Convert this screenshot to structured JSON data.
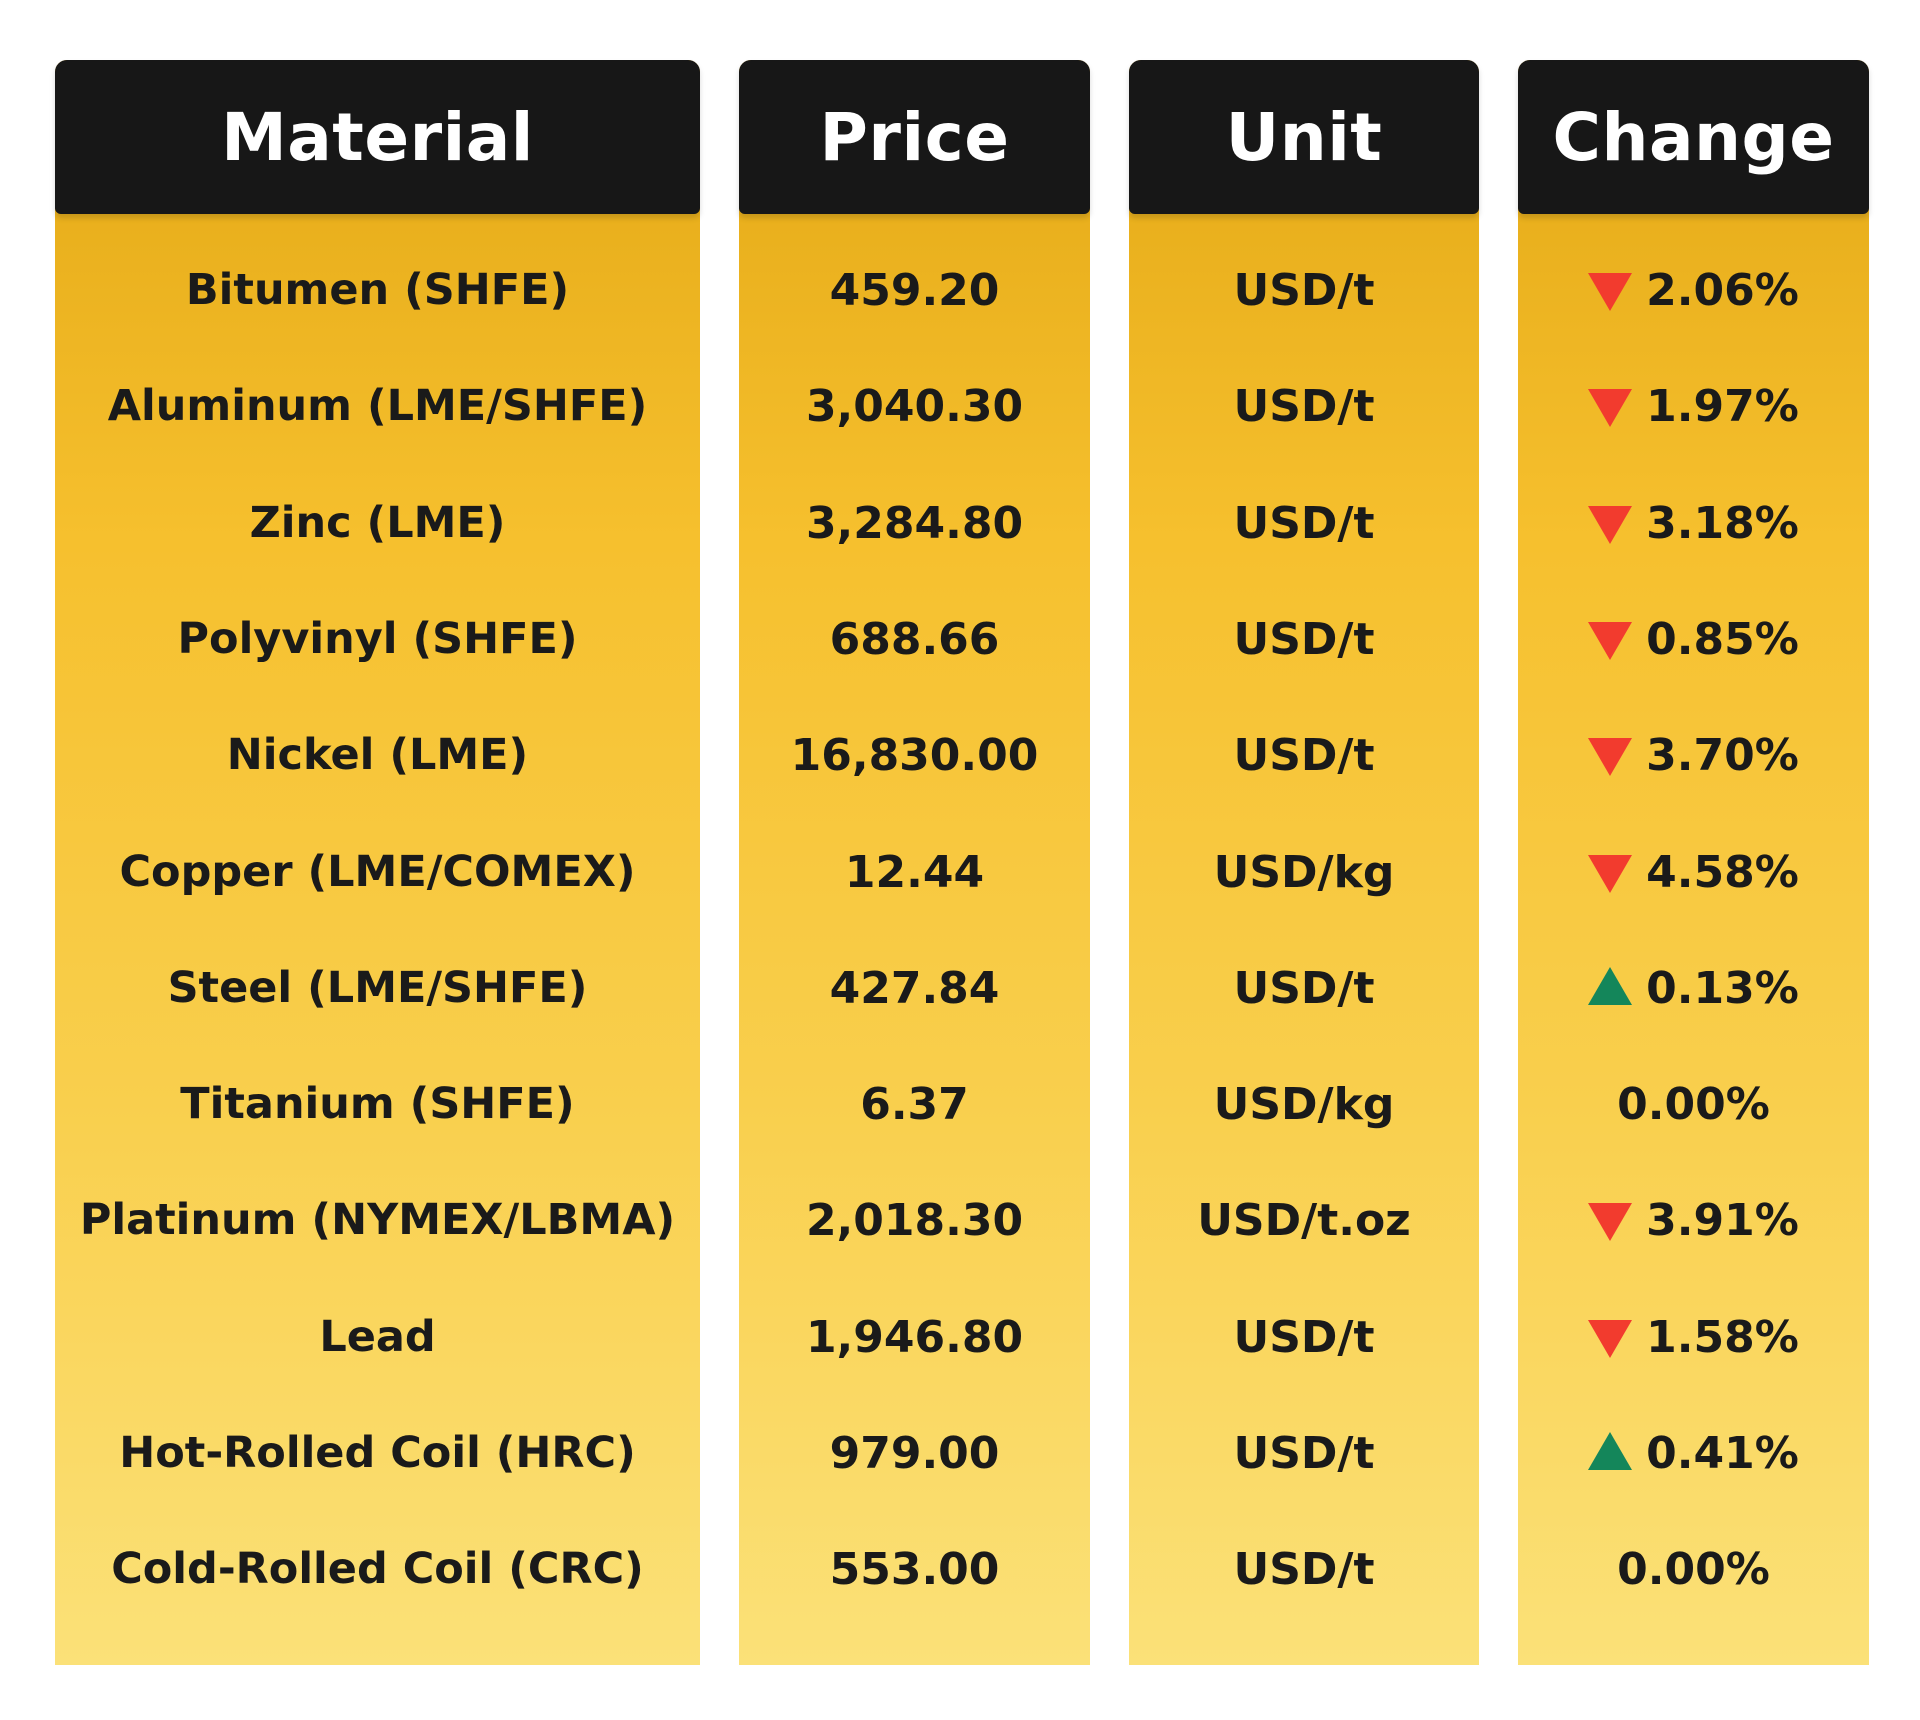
{
  "headers": {
    "material": "Material",
    "price": "Price",
    "unit": "Unit",
    "change": "Change"
  },
  "colors": {
    "header_bg": "#171717",
    "down": "#f23b2e",
    "up": "#14865a",
    "gradient_top": "#e3a815",
    "gradient_bottom": "#fbe178"
  },
  "rows": [
    {
      "material": "Bitumen (SHFE)",
      "price": "459.20",
      "unit": "USD/t",
      "direction": "down",
      "change": "2.06%"
    },
    {
      "material": "Aluminum (LME/SHFE)",
      "price": "3,040.30",
      "unit": "USD/t",
      "direction": "down",
      "change": "1.97%"
    },
    {
      "material": "Zinc (LME)",
      "price": "3,284.80",
      "unit": "USD/t",
      "direction": "down",
      "change": "3.18%"
    },
    {
      "material": "Polyvinyl (SHFE)",
      "price": "688.66",
      "unit": "USD/t",
      "direction": "down",
      "change": "0.85%"
    },
    {
      "material": "Nickel (LME)",
      "price": "16,830.00",
      "unit": "USD/t",
      "direction": "down",
      "change": "3.70%"
    },
    {
      "material": "Copper (LME/COMEX)",
      "price": "12.44",
      "unit": "USD/kg",
      "direction": "down",
      "change": "4.58%"
    },
    {
      "material": "Steel (LME/SHFE)",
      "price": "427.84",
      "unit": "USD/t",
      "direction": "up",
      "change": "0.13%"
    },
    {
      "material": "Titanium (SHFE)",
      "price": "6.37",
      "unit": "USD/kg",
      "direction": "none",
      "change": "0.00%"
    },
    {
      "material": "Platinum (NYMEX/LBMA)",
      "price": "2,018.30",
      "unit": "USD/t.oz",
      "direction": "down",
      "change": "3.91%"
    },
    {
      "material": "Lead",
      "price": "1,946.80",
      "unit": "USD/t",
      "direction": "down",
      "change": "1.58%"
    },
    {
      "material": "Hot-Rolled Coil (HRC)",
      "price": "979.00",
      "unit": "USD/t",
      "direction": "up",
      "change": "0.41%"
    },
    {
      "material": "Cold-Rolled Coil (CRC)",
      "price": "553.00",
      "unit": "USD/t",
      "direction": "none",
      "change": "0.00%"
    }
  ]
}
